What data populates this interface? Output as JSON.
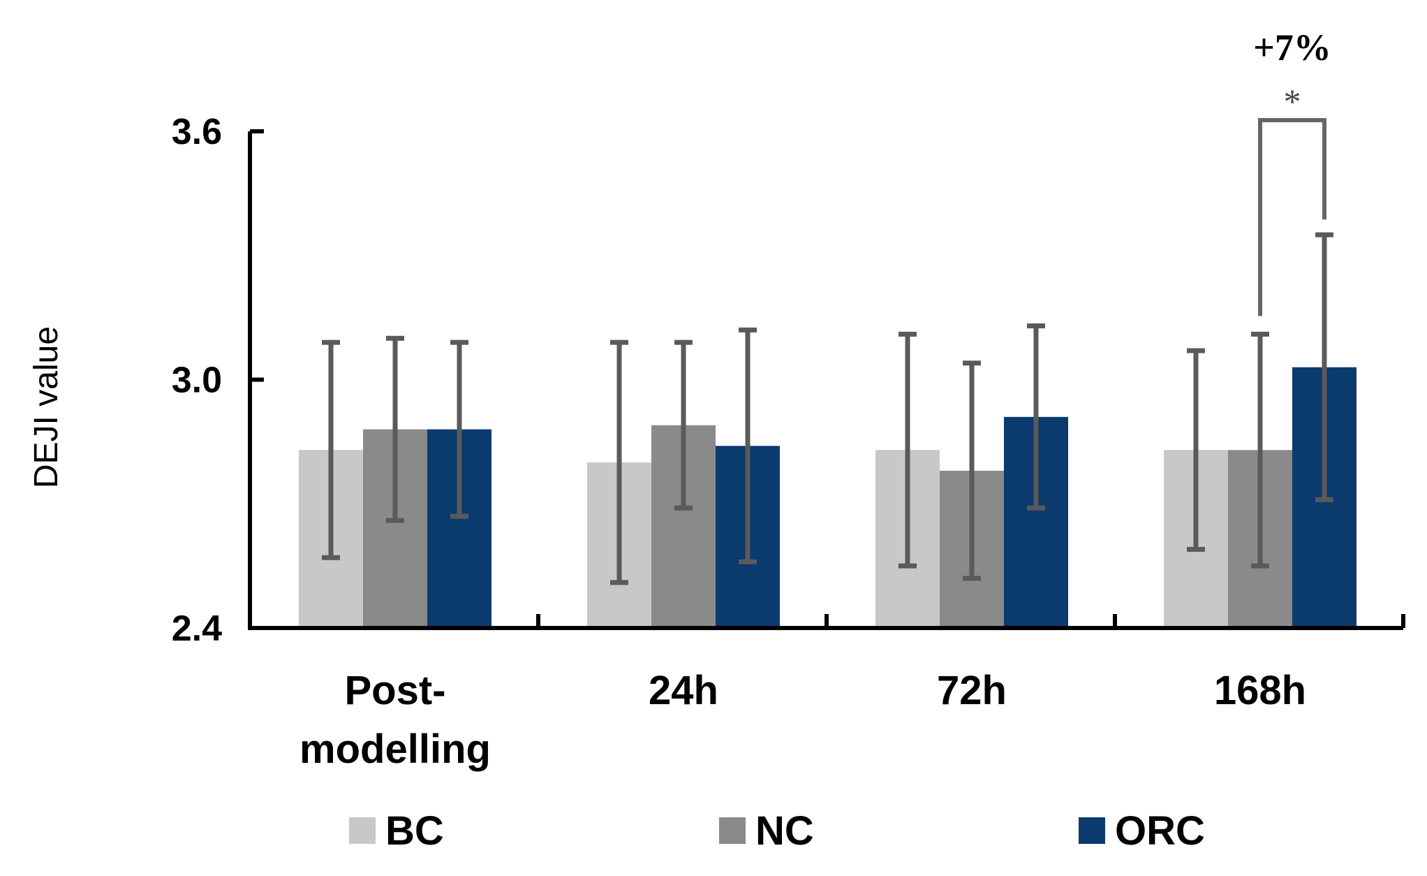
{
  "chart_data": {
    "type": "bar",
    "ylabel": "DEJI value",
    "ylim": [
      2.4,
      3.6
    ],
    "yticks": [
      "2.4",
      "3.0",
      "3.6"
    ],
    "categories": [
      {
        "line1": "Post-",
        "line2": "modelling"
      },
      {
        "line1": "24h",
        "line2": ""
      },
      {
        "line1": "72h",
        "line2": ""
      },
      {
        "line1": "168h",
        "line2": ""
      }
    ],
    "series": [
      {
        "name": "BC",
        "color": "#c8c8c8",
        "values": [
          2.83,
          2.8,
          2.83,
          2.83
        ],
        "errors": [
          0.26,
          0.29,
          0.28,
          0.24
        ]
      },
      {
        "name": "NC",
        "color": "#8a8a8a",
        "values": [
          2.88,
          2.89,
          2.78,
          2.83
        ],
        "errors": [
          0.22,
          0.2,
          0.26,
          0.28
        ]
      },
      {
        "name": "ORC",
        "color": "#0a3a6e",
        "values": [
          2.88,
          2.84,
          2.91,
          3.03
        ],
        "errors": [
          0.21,
          0.28,
          0.22,
          0.32
        ]
      }
    ],
    "annotation": {
      "category_index": 3,
      "from_series": 1,
      "to_series": 2,
      "stars": "*",
      "label": "+7%"
    }
  }
}
